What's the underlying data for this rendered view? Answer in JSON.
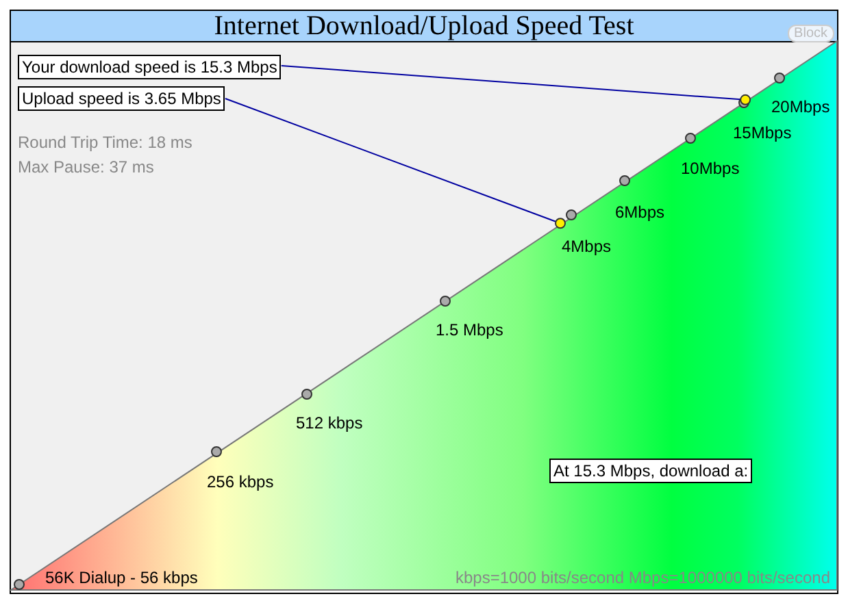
{
  "chart_data": {
    "type": "other",
    "title": "Internet Download/Upload Speed Test",
    "categories": [
      null,
      null
    ],
    "values": [
      15.3,
      3.65
    ],
    "colors": [
      "#ffee00",
      "#ffee00"
    ],
    "value_labels": [
      "Your download speed is 15.3 Mbps",
      "Upload speed is 3.65 Mbps"
    ],
    "annotations": [
      "Round Trip Time: 18 ms",
      "Max Pause: 37 ms",
      "20Mbps",
      "15Mbps",
      "10Mbps",
      "6Mbps",
      "4Mbps",
      "1.5 Mbps",
      "512 kbps",
      "256 kbps",
      "56K Dialup - 56 kbps",
      "At 15.3 Mbps, download a:",
      "kbps=1000 bits/second  Mbps=1000000 bits/second",
      "Block"
    ]
  }
}
